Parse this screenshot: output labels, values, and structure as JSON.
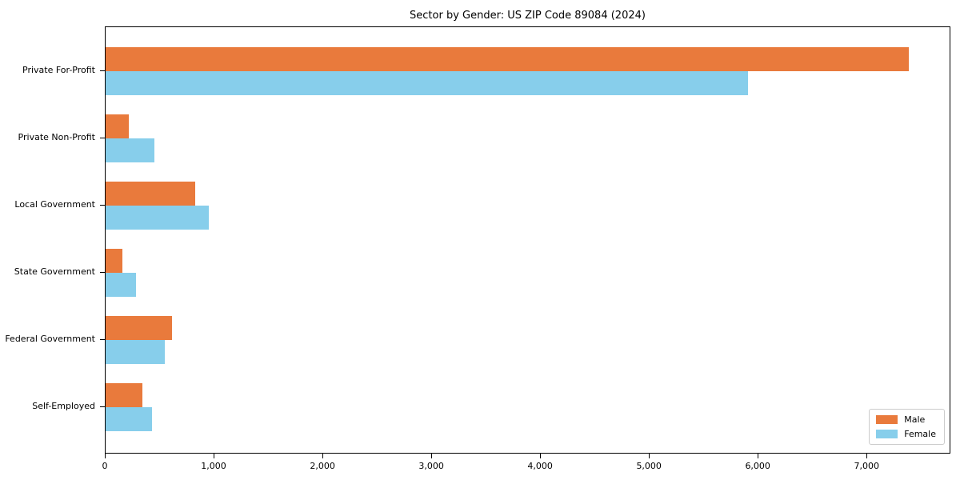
{
  "chart_data": {
    "type": "bar",
    "orientation": "horizontal",
    "title": "Sector by Gender: US ZIP Code 89084 (2024)",
    "categories": [
      "Private For-Profit",
      "Private Non-Profit",
      "Local Government",
      "State Government",
      "Federal Government",
      "Self-Employed"
    ],
    "series": [
      {
        "name": "Male",
        "color": "#E97A3C",
        "values": [
          7380,
          210,
          820,
          155,
          610,
          340
        ]
      },
      {
        "name": "Female",
        "color": "#87CEEB",
        "values": [
          5900,
          450,
          950,
          280,
          545,
          425
        ]
      }
    ],
    "xlabel": "",
    "ylabel": "",
    "xlim": [
      0,
      7770
    ],
    "xticks": [
      {
        "value": 0,
        "label": "0"
      },
      {
        "value": 1000,
        "label": "1,000"
      },
      {
        "value": 2000,
        "label": "2,000"
      },
      {
        "value": 3000,
        "label": "3,000"
      },
      {
        "value": 4000,
        "label": "4,000"
      },
      {
        "value": 5000,
        "label": "5,000"
      },
      {
        "value": 6000,
        "label": "6,000"
      },
      {
        "value": 7000,
        "label": "7,000"
      }
    ],
    "grid": false,
    "legend_position": "lower right",
    "legend": [
      "Male",
      "Female"
    ]
  }
}
